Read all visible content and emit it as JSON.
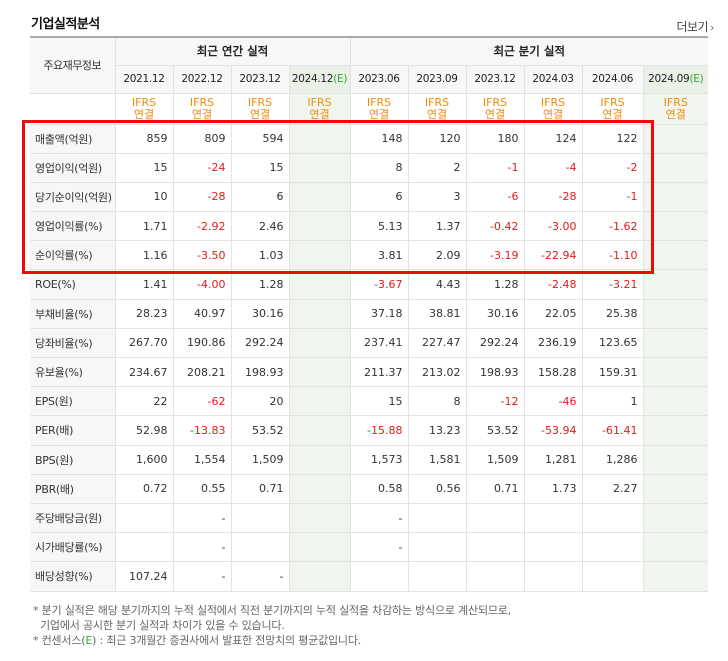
{
  "title": "기업실적분석",
  "more_label": "더보기",
  "more_arrow": "›",
  "header": {
    "row_label": "주요재무정보",
    "annual_group": "최근 연간 실적",
    "quarter_group": "최근 분기 실적",
    "periods": [
      {
        "label": "2021.12",
        "est": false
      },
      {
        "label": "2022.12",
        "est": false
      },
      {
        "label": "2023.12",
        "est": false
      },
      {
        "label": "2024.12",
        "est": true
      },
      {
        "label": "2023.06",
        "est": false
      },
      {
        "label": "2023.09",
        "est": false
      },
      {
        "label": "2023.12",
        "est": false
      },
      {
        "label": "2024.03",
        "est": false
      },
      {
        "label": "2024.06",
        "est": false
      },
      {
        "label": "2024.09",
        "est": true
      }
    ],
    "est_mark": "(E)",
    "basis_top": "IFRS",
    "basis_bottom": "연결"
  },
  "rows": [
    {
      "label": "매출액(억원)",
      "values": [
        "859",
        "809",
        "594",
        "",
        "148",
        "120",
        "180",
        "124",
        "122",
        ""
      ]
    },
    {
      "label": "영업이익(억원)",
      "values": [
        "15",
        "-24",
        "15",
        "",
        "8",
        "2",
        "-1",
        "-4",
        "-2",
        ""
      ]
    },
    {
      "label": "당기순이익(억원)",
      "values": [
        "10",
        "-28",
        "6",
        "",
        "6",
        "3",
        "-6",
        "-28",
        "-1",
        ""
      ]
    },
    {
      "label": "영업이익률(%)",
      "values": [
        "1.71",
        "-2.92",
        "2.46",
        "",
        "5.13",
        "1.37",
        "-0.42",
        "-3.00",
        "-1.62",
        ""
      ]
    },
    {
      "label": "순이익률(%)",
      "values": [
        "1.16",
        "-3.50",
        "1.03",
        "",
        "3.81",
        "2.09",
        "-3.19",
        "-22.94",
        "-1.10",
        ""
      ]
    },
    {
      "label": "ROE(%)",
      "values": [
        "1.41",
        "-4.00",
        "1.28",
        "",
        "-3.67",
        "4.43",
        "1.28",
        "-2.48",
        "-3.21",
        ""
      ]
    },
    {
      "label": "부채비율(%)",
      "values": [
        "28.23",
        "40.97",
        "30.16",
        "",
        "37.18",
        "38.81",
        "30.16",
        "22.05",
        "25.38",
        ""
      ]
    },
    {
      "label": "당좌비율(%)",
      "values": [
        "267.70",
        "190.86",
        "292.24",
        "",
        "237.41",
        "227.47",
        "292.24",
        "236.19",
        "123.65",
        ""
      ]
    },
    {
      "label": "유보율(%)",
      "values": [
        "234.67",
        "208.21",
        "198.93",
        "",
        "211.37",
        "213.02",
        "198.93",
        "158.28",
        "159.31",
        ""
      ]
    },
    {
      "label": "EPS(원)",
      "values": [
        "22",
        "-62",
        "20",
        "",
        "15",
        "8",
        "-12",
        "-46",
        "1",
        ""
      ]
    },
    {
      "label": "PER(배)",
      "values": [
        "52.98",
        "-13.83",
        "53.52",
        "",
        "-15.88",
        "13.23",
        "53.52",
        "-53.94",
        "-61.41",
        ""
      ]
    },
    {
      "label": "BPS(원)",
      "values": [
        "1,600",
        "1,554",
        "1,509",
        "",
        "1,573",
        "1,581",
        "1,509",
        "1,281",
        "1,286",
        ""
      ]
    },
    {
      "label": "PBR(배)",
      "values": [
        "0.72",
        "0.55",
        "0.71",
        "",
        "0.58",
        "0.56",
        "0.71",
        "1.73",
        "2.27",
        ""
      ]
    },
    {
      "label": "주당배당금(원)",
      "values": [
        "",
        "-",
        "",
        "",
        "-",
        "",
        "",
        "",
        "",
        ""
      ]
    },
    {
      "label": "시가배당률(%)",
      "values": [
        "",
        "-",
        "",
        "",
        "-",
        "",
        "",
        "",
        "",
        ""
      ]
    },
    {
      "label": "배당성향(%)",
      "values": [
        "107.24",
        "-",
        "-",
        "",
        "",
        "",
        "",
        "",
        "",
        ""
      ]
    }
  ],
  "notes": {
    "line1": "* 분기 실적은 해당 분기까지의 누적 실적에서 직전 분기까지의 누적 실적을 차감하는 방식으로 계산되므로,",
    "line2": "기업에서 공시한 분기 실적과 차이가 있을 수 있습니다.",
    "line3_pre": "* 컨센서스(",
    "line3_e": "E",
    "line3_post": ") : 최근 3개월간 증권사에서 발표한 전망치의 평균값입니다."
  },
  "colors": {
    "highlight_box": "#ef0909",
    "negative": "#e41b1b",
    "ifrs_orange": "#f08a0c",
    "estimate_green": "#3aa53a",
    "estimate_bg": "#f0f6ee"
  }
}
